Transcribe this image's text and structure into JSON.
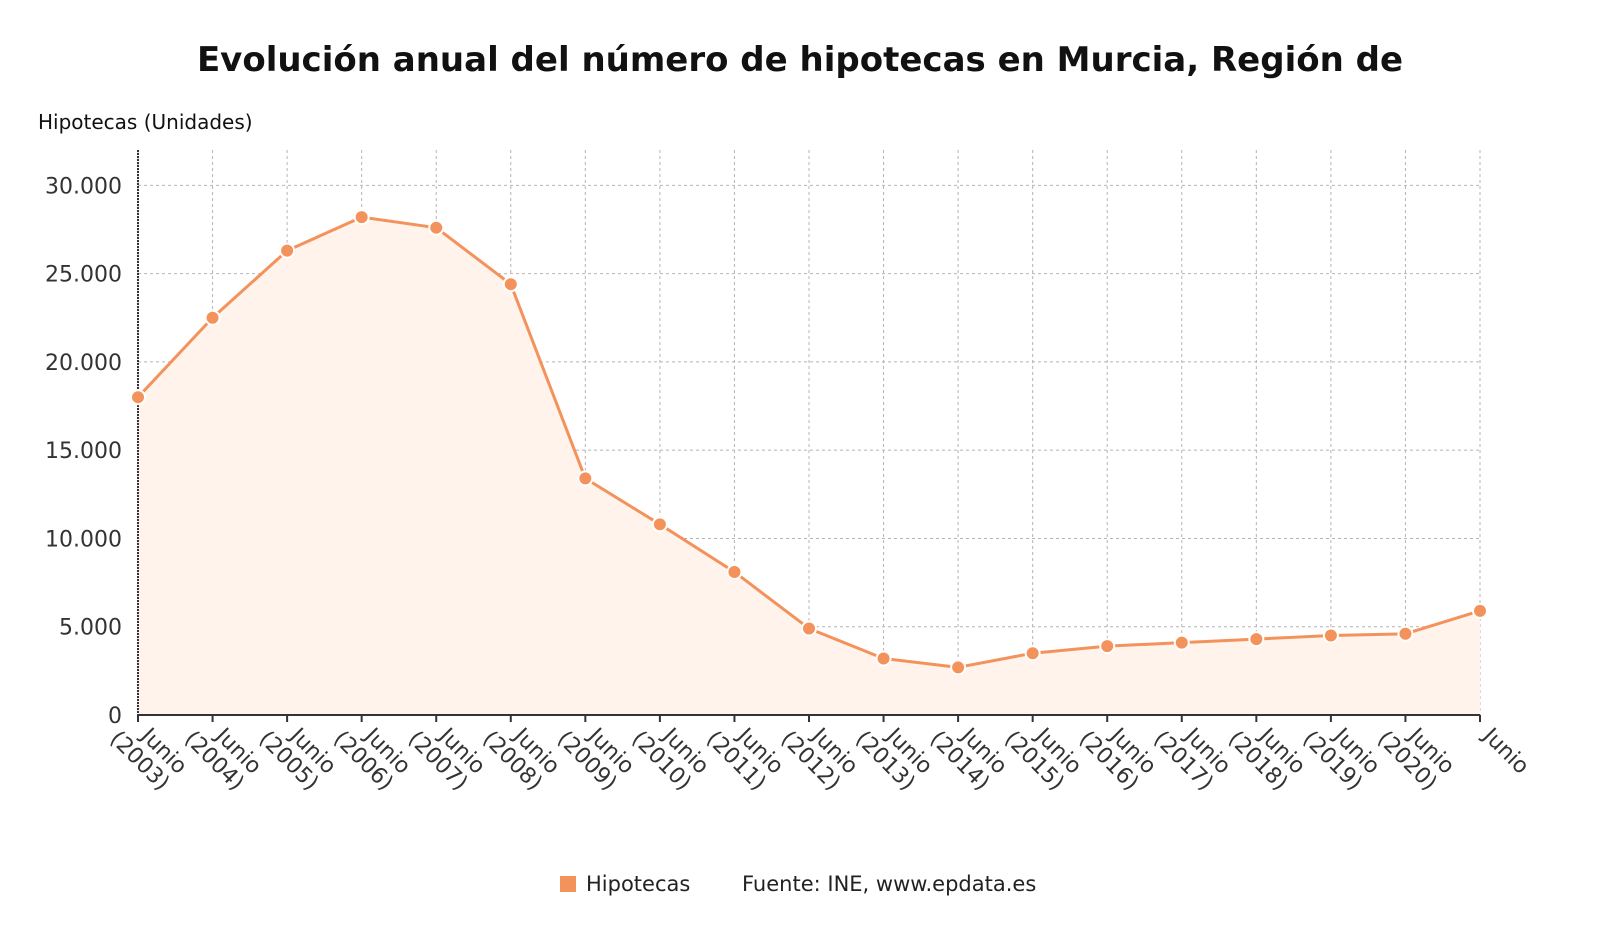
{
  "chart_data": {
    "type": "line",
    "title": "Evolución anual del número de hipotecas en Murcia, Región de",
    "ylabel": "Hipotecas (Unidades)",
    "xlabel": "",
    "ylim": [
      0,
      32000
    ],
    "y_ticks": [
      0,
      5000,
      10000,
      15000,
      20000,
      25000,
      30000
    ],
    "y_tick_labels": [
      "0",
      "5.000",
      "10.000",
      "15.000",
      "20.000",
      "25.000",
      "30.000"
    ],
    "categories": [
      "Junio (2003)",
      "Junio (2004)",
      "Junio (2005)",
      "Junio (2006)",
      "Junio (2007)",
      "Junio (2008)",
      "Junio (2009)",
      "Junio (2010)",
      "Junio (2011)",
      "Junio (2012)",
      "Junio (2013)",
      "Junio (2014)",
      "Junio (2015)",
      "Junio (2016)",
      "Junio (2017)",
      "Junio (2018)",
      "Junio (2019)",
      "Junio (2020)",
      "Junio"
    ],
    "series": [
      {
        "name": "Hipotecas",
        "color": "#f4925c",
        "values": [
          18000,
          22500,
          26300,
          28200,
          27600,
          24400,
          13400,
          10800,
          8100,
          4900,
          3200,
          2700,
          3500,
          3900,
          4100,
          4300,
          4500,
          4600,
          5900
        ]
      }
    ],
    "grid": true,
    "legend": "bottom",
    "source": "Fuente: INE, www.epdata.es"
  }
}
